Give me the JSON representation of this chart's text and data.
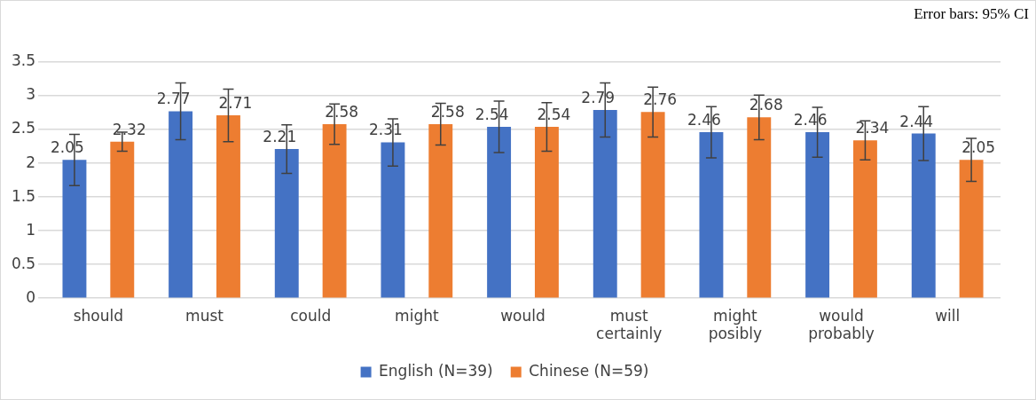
{
  "chart_data": {
    "type": "bar",
    "annotations": [
      "Error bars: 95% CI"
    ],
    "categories": [
      "should",
      "must",
      "could",
      "might",
      "would",
      "must\ncertainly",
      "might\nposibly",
      "would\nprobably",
      "will"
    ],
    "series": [
      {
        "name": "English (N=39)",
        "color": "#4472c4",
        "values": [
          2.05,
          2.77,
          2.21,
          2.31,
          2.54,
          2.79,
          2.46,
          2.46,
          2.44
        ],
        "errors": [
          0.38,
          0.42,
          0.36,
          0.35,
          0.38,
          0.4,
          0.38,
          0.37,
          0.4
        ]
      },
      {
        "name": "Chinese (N=59)",
        "color": "#ed7d31",
        "values": [
          2.32,
          2.71,
          2.58,
          2.58,
          2.54,
          2.76,
          2.68,
          2.34,
          2.05
        ],
        "errors": [
          0.14,
          0.39,
          0.3,
          0.31,
          0.36,
          0.37,
          0.33,
          0.29,
          0.32
        ]
      }
    ],
    "ylim": [
      0,
      3.5
    ],
    "yticks": [
      0,
      0.5,
      1,
      1.5,
      2,
      2.5,
      3,
      3.5
    ],
    "grid": "y",
    "legend": "bottom",
    "data_labels": true
  }
}
